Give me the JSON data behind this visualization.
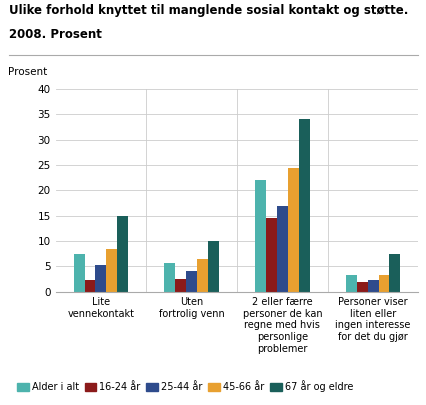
{
  "title_line1": "Ulike forhold knyttet til manglende sosial kontakt og støtte.",
  "title_line2": "2008. Prosent",
  "ylabel": "Prosent",
  "ylim": [
    0,
    40
  ],
  "yticks": [
    0,
    5,
    10,
    15,
    20,
    25,
    30,
    35,
    40
  ],
  "categories": [
    "Lite\nvennekontakt",
    "Uten\nfortrolig venn",
    "2 eller færre\npersoner de kan\nregne med hvis\npersonlige\nproblemer",
    "Personer viser\nliten eller\ningen interesse\nfor det du gjør"
  ],
  "series": {
    "Alder i alt": [
      7.5,
      5.7,
      22.0,
      3.2
    ],
    "16-24 år": [
      2.2,
      2.5,
      14.5,
      1.8
    ],
    "25-44 år": [
      5.2,
      4.1,
      17.0,
      2.2
    ],
    "45-66 år": [
      8.5,
      6.4,
      24.5,
      3.2
    ],
    "67 år og eldre": [
      15.0,
      10.0,
      34.0,
      7.5
    ]
  },
  "colors": {
    "Alder i alt": "#4db3ad",
    "16-24 år": "#8b1a1a",
    "25-44 år": "#2e4b8c",
    "45-66 år": "#e8a030",
    "67 år og eldre": "#1a5f5a"
  },
  "legend_order": [
    "Alder i alt",
    "16-24 år",
    "25-44 år",
    "45-66 år",
    "67 år og eldre"
  ],
  "background_color": "#ffffff",
  "grid_color": "#cccccc",
  "separator_color": "#aaaaaa"
}
